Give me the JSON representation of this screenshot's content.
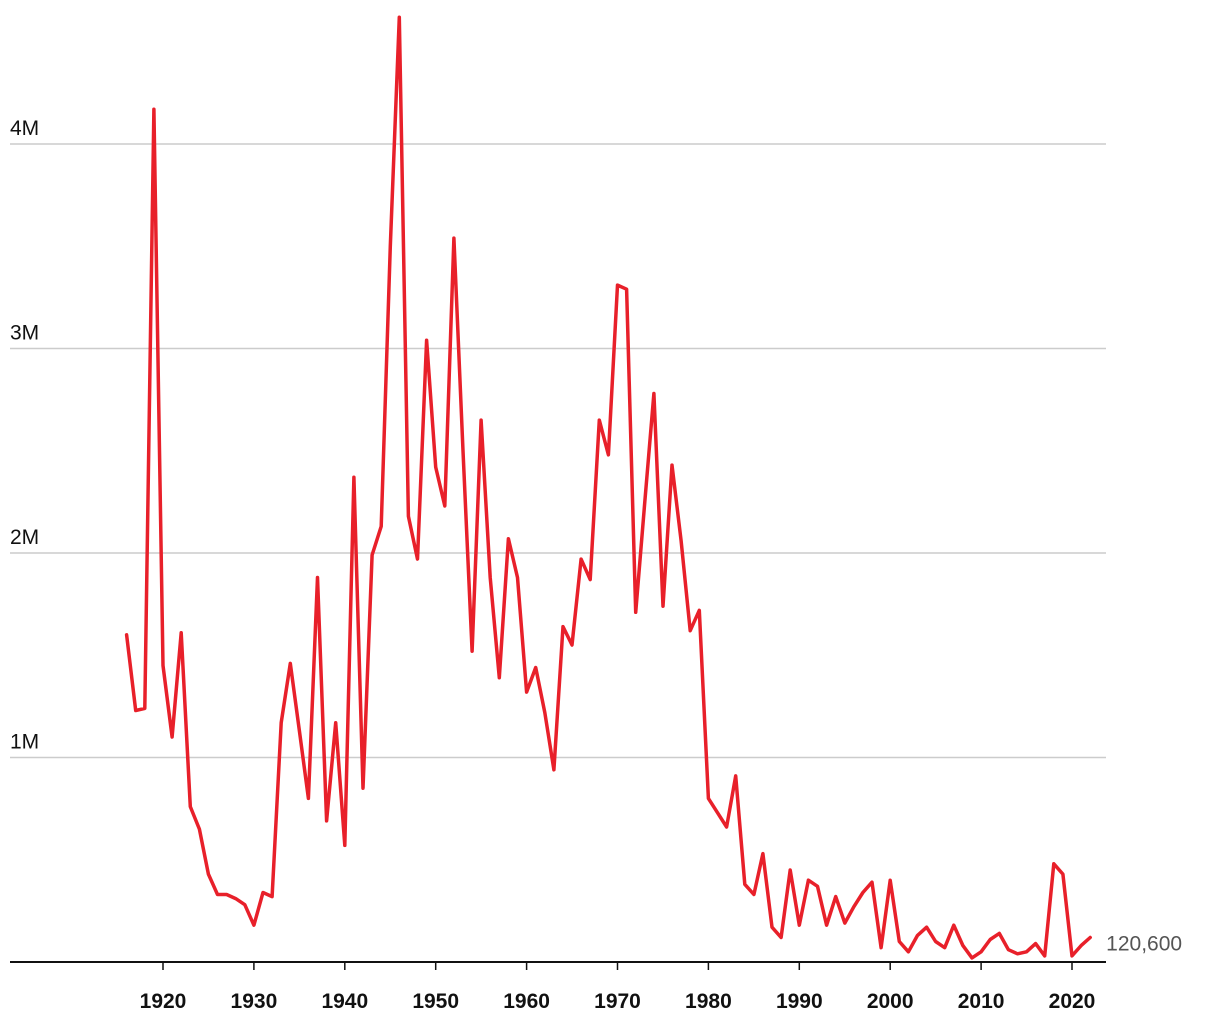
{
  "chart_data": {
    "type": "line",
    "title": "",
    "xlabel": "",
    "ylabel": "",
    "xlim": [
      1906,
      2023
    ],
    "ylim": [
      0,
      4.6
    ],
    "y_ticks": [
      {
        "value": 1,
        "label": "1M"
      },
      {
        "value": 2,
        "label": "2M"
      },
      {
        "value": 3,
        "label": "3M"
      },
      {
        "value": 4,
        "label": "4M"
      }
    ],
    "x_ticks": [
      {
        "value": 1920,
        "label": "1920"
      },
      {
        "value": 1930,
        "label": "1930"
      },
      {
        "value": 1940,
        "label": "1940"
      },
      {
        "value": 1950,
        "label": "1950"
      },
      {
        "value": 1960,
        "label": "1960"
      },
      {
        "value": 1970,
        "label": "1970"
      },
      {
        "value": 1980,
        "label": "1980"
      },
      {
        "value": 1990,
        "label": "1990"
      },
      {
        "value": 2000,
        "label": "2000"
      },
      {
        "value": 2010,
        "label": "2010"
      },
      {
        "value": 2020,
        "label": "2020"
      }
    ],
    "grid": true,
    "colors": {
      "line": "#e8202a",
      "grid": "#cccccc",
      "axis": "#111111"
    },
    "end_label": "120,600",
    "series": [
      {
        "x": [
          1916,
          1917,
          1918,
          1919,
          1920,
          1921,
          1922,
          1923,
          1924,
          1925,
          1926,
          1927,
          1928,
          1929,
          1930,
          1931,
          1932,
          1933,
          1934,
          1935,
          1936,
          1937,
          1938,
          1939,
          1940,
          1941,
          1942,
          1943,
          1944,
          1945,
          1946,
          1947,
          1948,
          1949,
          1950,
          1951,
          1952,
          1953,
          1954,
          1955,
          1956,
          1957,
          1958,
          1959,
          1960,
          1961,
          1962,
          1963,
          1964,
          1965,
          1966,
          1967,
          1968,
          1969,
          1970,
          1971,
          1972,
          1973,
          1974,
          1975,
          1976,
          1977,
          1978,
          1979,
          1980,
          1981,
          1982,
          1983,
          1984,
          1985,
          1986,
          1987,
          1988,
          1989,
          1990,
          1991,
          1992,
          1993,
          1994,
          1995,
          1996,
          1997,
          1998,
          1999,
          2000,
          2001,
          2002,
          2003,
          2004,
          2005,
          2006,
          2007,
          2008,
          2009,
          2010,
          2011,
          2012,
          2013,
          2014,
          2015,
          2016,
          2017,
          2018,
          2019,
          2020,
          2021,
          2022
        ],
        "values": [
          1.6,
          1.23,
          1.24,
          4.17,
          1.45,
          1.1,
          1.61,
          0.76,
          0.65,
          0.43,
          0.33,
          0.33,
          0.31,
          0.28,
          0.18,
          0.34,
          0.32,
          1.17,
          1.46,
          1.13,
          0.8,
          1.88,
          0.69,
          1.17,
          0.57,
          2.37,
          0.85,
          1.99,
          2.13,
          3.5,
          4.62,
          2.18,
          1.97,
          3.04,
          2.42,
          2.23,
          3.54,
          2.5,
          1.52,
          2.65,
          1.88,
          1.39,
          2.07,
          1.88,
          1.32,
          1.44,
          1.22,
          0.94,
          1.64,
          1.55,
          1.97,
          1.87,
          2.65,
          2.48,
          3.31,
          3.29,
          1.71,
          2.25,
          2.78,
          1.74,
          2.43,
          2.06,
          1.62,
          1.72,
          0.8,
          0.73,
          0.66,
          0.91,
          0.38,
          0.33,
          0.53,
          0.17,
          0.12,
          0.45,
          0.18,
          0.4,
          0.37,
          0.18,
          0.32,
          0.19,
          0.27,
          0.34,
          0.39,
          0.07,
          0.4,
          0.1,
          0.05,
          0.13,
          0.17,
          0.1,
          0.07,
          0.18,
          0.08,
          0.02,
          0.05,
          0.11,
          0.14,
          0.06,
          0.04,
          0.05,
          0.09,
          0.03,
          0.48,
          0.43,
          0.03,
          0.08,
          0.12
        ]
      }
    ]
  }
}
